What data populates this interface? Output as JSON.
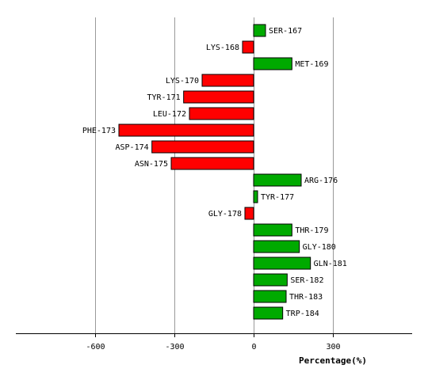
{
  "chart_data": {
    "type": "bar",
    "orientation": "horizontal",
    "xlabel": "Percentage(%)",
    "xlim": [
      -900,
      600
    ],
    "xticks": [
      -600,
      -300,
      0,
      300
    ],
    "xtick_labels": [
      "-600",
      "-300",
      "0",
      "300"
    ],
    "grid": true,
    "colors": {
      "positive": "#00aa00",
      "negative": "#ff0000",
      "grid": "#999999",
      "axis": "#000000"
    },
    "categories": [
      "SER-167",
      "LYS-168",
      "MET-169",
      "LYS-170",
      "TYR-171",
      "LEU-172",
      "PHE-173",
      "ASP-174",
      "ASN-175",
      "ARG-176",
      "TYR-177",
      "GLY-178",
      "THR-179",
      "GLY-180",
      "GLN-181",
      "SER-182",
      "THR-183",
      "TRP-184"
    ],
    "values": [
      45,
      -42,
      145,
      -195,
      -265,
      -243,
      -510,
      -385,
      -312,
      180,
      15,
      -33,
      145,
      173,
      215,
      127,
      123,
      110
    ]
  }
}
